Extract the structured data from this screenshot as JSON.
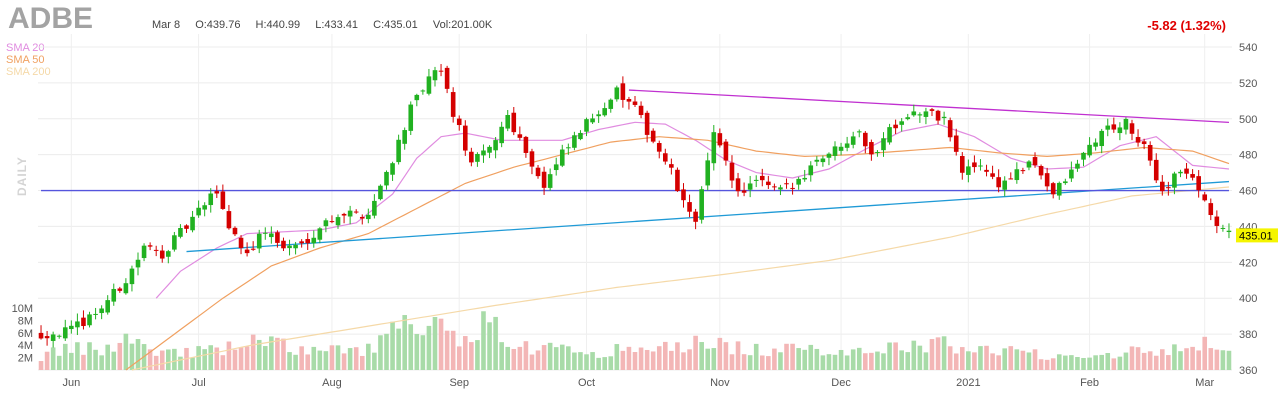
{
  "header": {
    "ticker": "ADBE",
    "date": "Mar 8",
    "open": "O:439.76",
    "high": "H:440.99",
    "low": "L:433.41",
    "close": "C:435.01",
    "volume": "Vol:201.00K",
    "change": "-5.82 (1.32%)"
  },
  "legend": [
    {
      "label": "SMA 20",
      "color": "#e08ce0"
    },
    {
      "label": "SMA 50",
      "color": "#f0a060"
    },
    {
      "label": "SMA 200",
      "color": "#f5d9a8"
    }
  ],
  "period_label": "DAILY",
  "last_price_label": "435.01",
  "colors": {
    "up": "#21b121",
    "down": "#d40000",
    "vol_up": "#a8dba8",
    "vol_down": "#f3b6b6",
    "trend_resistance": "#c030d0",
    "trend_support": "#1f9ad6",
    "horizontal": "#5555dd",
    "price_tag": "#f5f500"
  },
  "chart_data": {
    "type": "candlestick",
    "title": "ADBE",
    "y_axis": {
      "ticks": [
        360,
        380,
        400,
        420,
        440,
        460,
        480,
        500,
        520,
        540
      ],
      "range": [
        360,
        545
      ]
    },
    "volume_axis": {
      "ticks": [
        "2M",
        "4M",
        "6M",
        "8M",
        "10M"
      ],
      "tick_values": [
        2,
        4,
        6,
        8,
        10
      ],
      "unit": "M"
    },
    "x_axis": {
      "month_labels": [
        "Jun",
        "Jul",
        "Aug",
        "Sep",
        "Oct",
        "Nov",
        "Dec",
        "2021",
        "Feb",
        "Mar"
      ],
      "month_start_index": [
        5,
        26,
        48,
        69,
        90,
        112,
        132,
        153,
        173,
        192
      ]
    },
    "anchors": [
      [
        0,
        380
      ],
      [
        5,
        382
      ],
      [
        10,
        395
      ],
      [
        14,
        410
      ],
      [
        17,
        428
      ],
      [
        20,
        425
      ],
      [
        24,
        440
      ],
      [
        29,
        460
      ],
      [
        31,
        440
      ],
      [
        34,
        425
      ],
      [
        37,
        438
      ],
      [
        40,
        428
      ],
      [
        43,
        430
      ],
      [
        46,
        440
      ],
      [
        49,
        447
      ],
      [
        54,
        447
      ],
      [
        58,
        478
      ],
      [
        61,
        505
      ],
      [
        64,
        522
      ],
      [
        66,
        527
      ],
      [
        68,
        503
      ],
      [
        71,
        475
      ],
      [
        74,
        483
      ],
      [
        77,
        502
      ],
      [
        80,
        482
      ],
      [
        83,
        462
      ],
      [
        86,
        480
      ],
      [
        89,
        493
      ],
      [
        92,
        505
      ],
      [
        95,
        515
      ],
      [
        98,
        505
      ],
      [
        101,
        488
      ],
      [
        104,
        470
      ],
      [
        106,
        452
      ],
      [
        108,
        445
      ],
      [
        111,
        490
      ],
      [
        113,
        478
      ],
      [
        115,
        458
      ],
      [
        118,
        465
      ],
      [
        121,
        460
      ],
      [
        124,
        462
      ],
      [
        128,
        478
      ],
      [
        131,
        483
      ],
      [
        135,
        495
      ],
      [
        137,
        478
      ],
      [
        140,
        495
      ],
      [
        143,
        503
      ],
      [
        146,
        503
      ],
      [
        149,
        500
      ],
      [
        152,
        470
      ],
      [
        155,
        475
      ],
      [
        158,
        463
      ],
      [
        161,
        470
      ],
      [
        164,
        475
      ],
      [
        167,
        458
      ],
      [
        170,
        470
      ],
      [
        173,
        485
      ],
      [
        176,
        495
      ],
      [
        179,
        497
      ],
      [
        182,
        483
      ],
      [
        185,
        460
      ],
      [
        188,
        472
      ],
      [
        191,
        462
      ],
      [
        194,
        440
      ],
      [
        196,
        435
      ]
    ],
    "volume_anchors": [
      [
        0,
        2.2
      ],
      [
        5,
        3.5
      ],
      [
        10,
        3.2
      ],
      [
        15,
        5.5
      ],
      [
        20,
        2.8
      ],
      [
        30,
        3.2
      ],
      [
        35,
        4.8
      ],
      [
        45,
        3.0
      ],
      [
        55,
        3.5
      ],
      [
        58,
        6.5
      ],
      [
        60,
        7.5
      ],
      [
        62,
        5.0
      ],
      [
        65,
        7.0
      ],
      [
        68,
        5.0
      ],
      [
        71,
        6.5
      ],
      [
        74,
        8.0
      ],
      [
        77,
        4.5
      ],
      [
        82,
        3.5
      ],
      [
        92,
        3.0
      ],
      [
        102,
        3.5
      ],
      [
        110,
        4.5
      ],
      [
        118,
        3.2
      ],
      [
        128,
        3.2
      ],
      [
        138,
        3.5
      ],
      [
        150,
        4.2
      ],
      [
        155,
        3.5
      ],
      [
        165,
        2.5
      ],
      [
        175,
        2.5
      ],
      [
        185,
        3.5
      ],
      [
        191,
        4.0
      ],
      [
        196,
        4.2
      ]
    ],
    "sma_anchors": {
      "SMA 20": [
        [
          19,
          400
        ],
        [
          23,
          415
        ],
        [
          29,
          428
        ],
        [
          34,
          436
        ],
        [
          40,
          437
        ],
        [
          46,
          438
        ],
        [
          52,
          442
        ],
        [
          58,
          458
        ],
        [
          62,
          478
        ],
        [
          66,
          490
        ],
        [
          70,
          492
        ],
        [
          76,
          488
        ],
        [
          81,
          488
        ],
        [
          86,
          488
        ],
        [
          92,
          494
        ],
        [
          98,
          498
        ],
        [
          103,
          497
        ],
        [
          108,
          488
        ],
        [
          113,
          477
        ],
        [
          118,
          470
        ],
        [
          124,
          467
        ],
        [
          130,
          472
        ],
        [
          136,
          483
        ],
        [
          142,
          493
        ],
        [
          148,
          497
        ],
        [
          154,
          490
        ],
        [
          160,
          478
        ],
        [
          166,
          472
        ],
        [
          172,
          473
        ],
        [
          178,
          485
        ],
        [
          184,
          490
        ],
        [
          190,
          474
        ],
        [
          196,
          472
        ]
      ],
      "SMA 50": [
        [
          14,
          360
        ],
        [
          22,
          380
        ],
        [
          30,
          400
        ],
        [
          38,
          418
        ],
        [
          46,
          428
        ],
        [
          54,
          436
        ],
        [
          62,
          450
        ],
        [
          70,
          464
        ],
        [
          78,
          473
        ],
        [
          86,
          480
        ],
        [
          94,
          487
        ],
        [
          102,
          490
        ],
        [
          110,
          488
        ],
        [
          118,
          482
        ],
        [
          126,
          479
        ],
        [
          134,
          480
        ],
        [
          142,
          482
        ],
        [
          150,
          484
        ],
        [
          158,
          481
        ],
        [
          166,
          479
        ],
        [
          174,
          481
        ],
        [
          182,
          484
        ],
        [
          190,
          482
        ],
        [
          196,
          475
        ]
      ],
      "SMA 200": [
        [
          15,
          360
        ],
        [
          35,
          374
        ],
        [
          55,
          385
        ],
        [
          75,
          396
        ],
        [
          95,
          406
        ],
        [
          112,
          413
        ],
        [
          130,
          421
        ],
        [
          150,
          434
        ],
        [
          165,
          446
        ],
        [
          180,
          457
        ],
        [
          196,
          462
        ]
      ]
    },
    "trendlines": [
      {
        "name": "resistance",
        "from": [
          97,
          516
        ],
        "to": [
          196,
          498
        ]
      },
      {
        "name": "support",
        "from": [
          24,
          426
        ],
        "to": [
          196,
          465
        ]
      },
      {
        "name": "horizontal",
        "from": [
          0,
          460
        ],
        "to": [
          196,
          460
        ]
      }
    ]
  }
}
